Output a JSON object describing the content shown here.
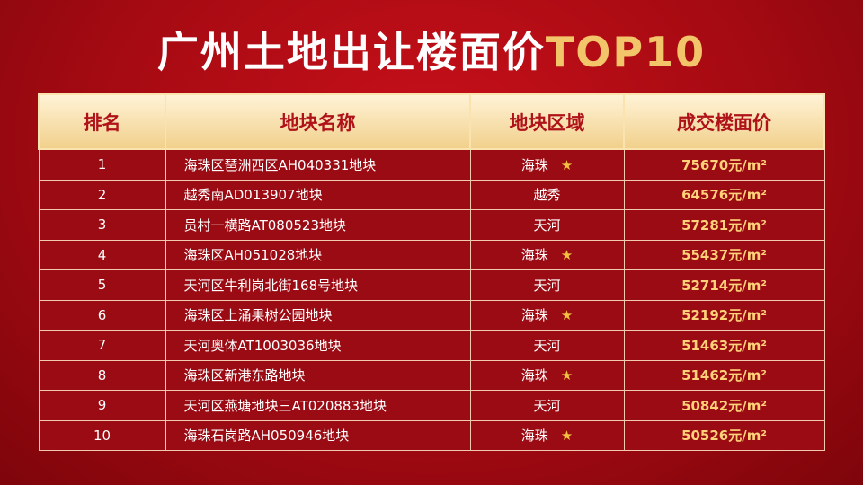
{
  "title": {
    "main": "广州土地出让楼面价",
    "highlight": "TOP10"
  },
  "table": {
    "header": [
      "排名",
      "地块名称",
      "地块区域",
      "成交楼面价"
    ],
    "rows": [
      {
        "rank": 1,
        "name": "海珠区琶洲西区AH040331地块",
        "district": "海珠",
        "starred": true,
        "price": "75670元/m²"
      },
      {
        "rank": 2,
        "name": "越秀南AD013907地块",
        "district": "越秀",
        "starred": false,
        "price": "64576元/m²"
      },
      {
        "rank": 3,
        "name": "员村一横路AT080523地块",
        "district": "天河",
        "starred": false,
        "price": "57281元/m²"
      },
      {
        "rank": 4,
        "name": "海珠区AH051028地块",
        "district": "海珠",
        "starred": true,
        "price": "55437元/m²"
      },
      {
        "rank": 5,
        "name": "天河区牛利岗北街168号地块",
        "district": "天河",
        "starred": false,
        "price": "52714元/m²"
      },
      {
        "rank": 6,
        "name": "海珠区上涌果树公园地块",
        "district": "海珠",
        "starred": true,
        "price": "52192元/m²"
      },
      {
        "rank": 7,
        "name": "天河奥体AT1003036地块",
        "district": "天河",
        "starred": false,
        "price": "51463元/m²"
      },
      {
        "rank": 8,
        "name": "海珠区新港东路地块",
        "district": "海珠",
        "starred": true,
        "price": "51462元/m²"
      },
      {
        "rank": 9,
        "name": "天河区燕塘地块三AT020883地块",
        "district": "天河",
        "starred": false,
        "price": "50842元/m²"
      },
      {
        "rank": 10,
        "name": "海珠石岗路AH050946地块",
        "district": "海珠",
        "starred": true,
        "price": "50526元/m²"
      }
    ]
  }
}
